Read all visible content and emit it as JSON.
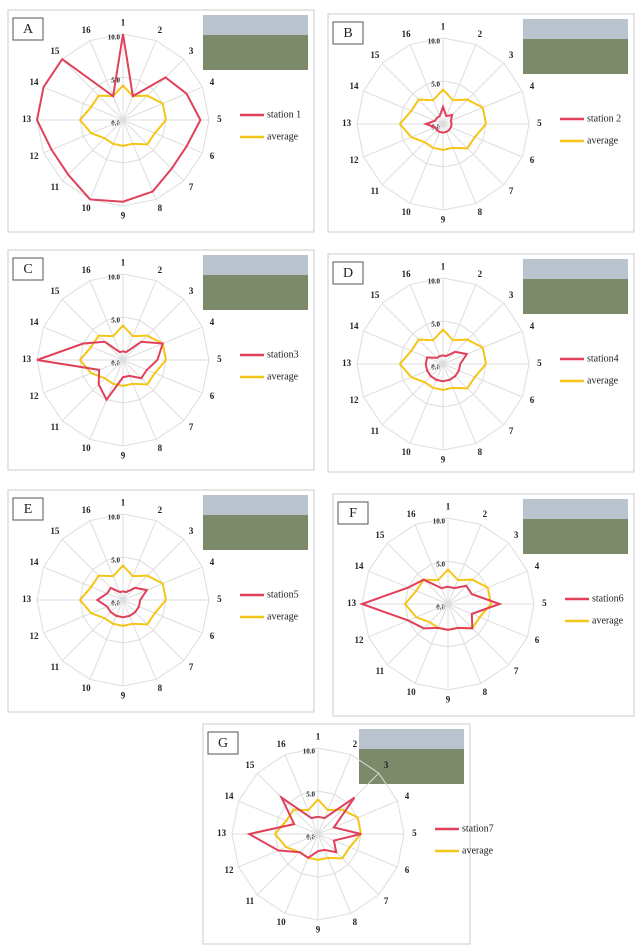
{
  "chart_data": [
    {
      "type": "radar",
      "panel": "A",
      "categories": [
        "1",
        "2",
        "3",
        "4",
        "5",
        "6",
        "7",
        "8",
        "9",
        "10",
        "11",
        "12",
        "13",
        "14",
        "15",
        "16"
      ],
      "rlim": [
        0,
        10
      ],
      "rticks": [
        {
          "value": 0,
          "label": "0.0"
        },
        {
          "value": 5,
          "label": "5.0"
        },
        {
          "value": 10,
          "label": "10.0"
        }
      ],
      "series": [
        {
          "name": "station 1",
          "color": "#e0405a",
          "values": [
            10,
            3,
            7,
            8,
            9,
            8,
            8,
            9,
            9.5,
            10,
            9,
            9,
            10,
            10,
            10,
            3
          ]
        },
        {
          "name": "average",
          "color": "#f5c518",
          "values": [
            4,
            3,
            4,
            5,
            5,
            4,
            4,
            3,
            3,
            3,
            3,
            4,
            5,
            4,
            4,
            3
          ]
        }
      ]
    },
    {
      "type": "radar",
      "panel": "B",
      "categories": [
        "1",
        "2",
        "3",
        "4",
        "5",
        "6",
        "7",
        "8",
        "9",
        "10",
        "11",
        "12",
        "13",
        "14",
        "15",
        "16"
      ],
      "rlim": [
        0,
        10
      ],
      "rticks": [
        {
          "value": 0,
          "label": "0.0"
        },
        {
          "value": 5,
          "label": "5.0"
        },
        {
          "value": 10,
          "label": "10.0"
        }
      ],
      "series": [
        {
          "name": "station 2",
          "color": "#e0405a",
          "values": [
            2,
            1,
            1.5,
            1,
            1,
            1,
            1,
            1,
            1,
            1,
            1,
            1,
            2,
            1,
            1,
            1
          ]
        },
        {
          "name": "average",
          "color": "#f5c518",
          "values": [
            4,
            3,
            4,
            5,
            5,
            4,
            4,
            3,
            3,
            3,
            3,
            4,
            5,
            4,
            4,
            3
          ]
        }
      ]
    },
    {
      "type": "radar",
      "panel": "C",
      "categories": [
        "1",
        "2",
        "3",
        "4",
        "5",
        "6",
        "7",
        "8",
        "9",
        "10",
        "11",
        "12",
        "13",
        "14",
        "15",
        "16"
      ],
      "rlim": [
        0,
        10
      ],
      "rticks": [
        {
          "value": 0,
          "label": "0.0"
        },
        {
          "value": 5,
          "label": "5.0"
        },
        {
          "value": 10,
          "label": "10.0"
        }
      ],
      "series": [
        {
          "name": "station3",
          "color": "#e0405a",
          "values": [
            1,
            1,
            3,
            5,
            4,
            3,
            3,
            2,
            2,
            5,
            4,
            3,
            10,
            5,
            3,
            1
          ]
        },
        {
          "name": "average",
          "color": "#f5c518",
          "values": [
            4,
            3,
            4,
            5,
            5,
            4,
            4,
            3,
            3,
            3,
            3,
            4,
            5,
            4,
            4,
            3
          ]
        }
      ]
    },
    {
      "type": "radar",
      "panel": "D",
      "categories": [
        "1",
        "2",
        "3",
        "4",
        "5",
        "6",
        "7",
        "8",
        "9",
        "10",
        "11",
        "12",
        "13",
        "14",
        "15",
        "16"
      ],
      "rlim": [
        0,
        10
      ],
      "rticks": [
        {
          "value": 0,
          "label": "0.0"
        },
        {
          "value": 5,
          "label": "5.0"
        },
        {
          "value": 10,
          "label": "10.0"
        }
      ],
      "series": [
        {
          "name": "station4",
          "color": "#e0405a",
          "values": [
            1,
            1,
            2,
            3,
            2,
            2,
            2,
            2,
            2,
            2,
            2,
            2,
            2,
            2,
            1,
            1
          ]
        },
        {
          "name": "average",
          "color": "#f5c518",
          "values": [
            4,
            3,
            4,
            5,
            5,
            4,
            4,
            3,
            3,
            3,
            3,
            4,
            5,
            4,
            4,
            3
          ]
        }
      ]
    },
    {
      "type": "radar",
      "panel": "E",
      "categories": [
        "1",
        "2",
        "3",
        "4",
        "5",
        "6",
        "7",
        "8",
        "9",
        "10",
        "11",
        "12",
        "13",
        "14",
        "15",
        "16"
      ],
      "rlim": [
        0,
        10
      ],
      "rticks": [
        {
          "value": 0,
          "label": "0.0"
        },
        {
          "value": 5,
          "label": "5.0"
        },
        {
          "value": 10,
          "label": "10.0"
        }
      ],
      "series": [
        {
          "name": "station5",
          "color": "#e0405a",
          "values": [
            1,
            1,
            2,
            3,
            2,
            2,
            2,
            2,
            2,
            2,
            2,
            2,
            3,
            2,
            2,
            1
          ]
        },
        {
          "name": "average",
          "color": "#f5c518",
          "values": [
            4,
            3,
            4,
            5,
            5,
            4,
            4,
            3,
            3,
            3,
            3,
            4,
            5,
            4,
            4,
            3
          ]
        }
      ]
    },
    {
      "type": "radar",
      "panel": "F",
      "categories": [
        "1",
        "2",
        "3",
        "4",
        "5",
        "6",
        "7",
        "8",
        "9",
        "10",
        "11",
        "12",
        "13",
        "14",
        "15",
        "16"
      ],
      "rlim": [
        0,
        10
      ],
      "rticks": [
        {
          "value": 0,
          "label": "0.0"
        },
        {
          "value": 5,
          "label": "5.0"
        },
        {
          "value": 10,
          "label": "10.0"
        }
      ],
      "series": [
        {
          "name": "station6",
          "color": "#e0405a",
          "values": [
            2,
            2,
            3,
            3,
            6,
            3,
            4,
            3,
            3,
            3,
            4,
            5,
            10,
            5,
            4,
            2
          ]
        },
        {
          "name": "average",
          "color": "#f5c518",
          "values": [
            4,
            3,
            4,
            5,
            5,
            4,
            4,
            3,
            3,
            3,
            3,
            4,
            5,
            4,
            4,
            3
          ]
        }
      ]
    },
    {
      "type": "radar",
      "panel": "G",
      "categories": [
        "1",
        "2",
        "3",
        "4",
        "5",
        "6",
        "7",
        "8",
        "9",
        "10",
        "11",
        "12",
        "13",
        "14",
        "15",
        "16"
      ],
      "rlim": [
        0,
        10
      ],
      "rticks": [
        {
          "value": 0,
          "label": "0.0"
        },
        {
          "value": 5,
          "label": "5.0"
        },
        {
          "value": 10,
          "label": "10.0"
        }
      ],
      "series": [
        {
          "name": "station7",
          "color": "#e0405a",
          "values": [
            2,
            2,
            6,
            2,
            5,
            2,
            3,
            2,
            2,
            3,
            3,
            5,
            8,
            3,
            6,
            2
          ]
        },
        {
          "name": "average",
          "color": "#f5c518",
          "values": [
            4,
            3,
            4,
            5,
            5,
            4,
            4,
            3,
            3,
            3,
            3,
            4,
            5,
            4,
            4,
            3
          ]
        }
      ]
    }
  ]
}
